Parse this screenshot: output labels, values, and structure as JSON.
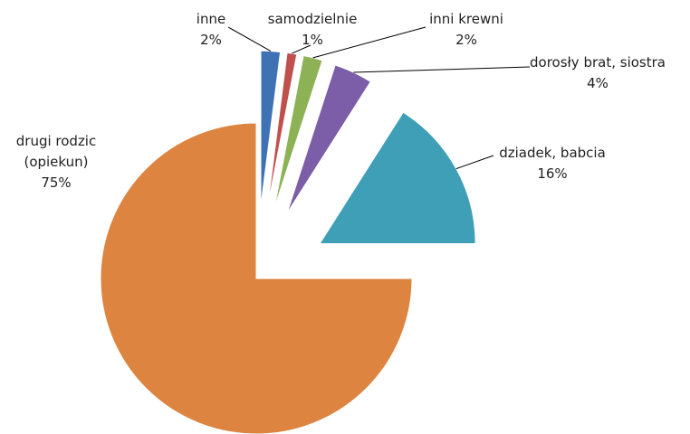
{
  "chart_data": {
    "type": "pie",
    "categories": [
      "inne",
      "samodzielnie",
      "inni krewni",
      "dorosły brat, siostra",
      "dziadek, babcia",
      "drugi rodzic (opiekun)"
    ],
    "values": [
      2,
      1,
      2,
      4,
      16,
      75
    ],
    "value_labels": [
      "2%",
      "1%",
      "2%",
      "4%",
      "16%",
      "75%"
    ],
    "colors": [
      "#3f72b5",
      "#c0504d",
      "#8db255",
      "#7b5ea7",
      "#3e9fb7",
      "#dd8440"
    ]
  }
}
